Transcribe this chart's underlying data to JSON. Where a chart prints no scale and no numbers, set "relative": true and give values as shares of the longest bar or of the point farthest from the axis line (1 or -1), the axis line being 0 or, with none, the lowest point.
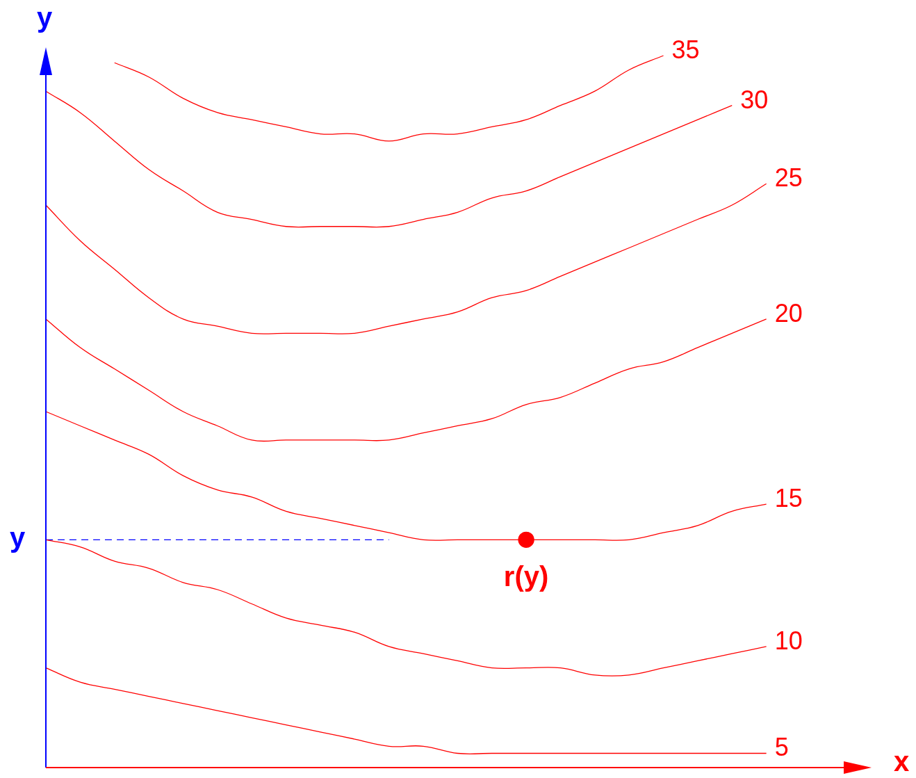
{
  "chart_data": {
    "type": "line",
    "relative": true,
    "xlabel": "x",
    "ylabel": "y",
    "legend": false,
    "marker": "none",
    "tick_labels": false,
    "categories": [
      null,
      null,
      null,
      null,
      null,
      null,
      null,
      null,
      null,
      null,
      null,
      null,
      null,
      null,
      null,
      null,
      null,
      null,
      null,
      null,
      null,
      null,
      null
    ],
    "series": [
      {
        "name": "35",
        "color": "#ff0000",
        "values": [
          null,
          null,
          0.99,
          0.97,
          0.94,
          0.92,
          0.91,
          0.9,
          0.89,
          0.89,
          0.88,
          0.89,
          0.89,
          0.9,
          0.91,
          0.93,
          0.95,
          0.98,
          1,
          null,
          null,
          null,
          null
        ]
      },
      {
        "name": "30",
        "color": "#ff0000",
        "values": [
          0.95,
          0.92,
          0.88,
          0.84,
          0.81,
          0.78,
          0.77,
          0.76,
          0.76,
          0.76,
          0.76,
          0.77,
          0.78,
          0.8,
          0.81,
          0.83,
          0.85,
          0.87,
          0.89,
          0.91,
          0.93,
          null,
          null
        ]
      },
      {
        "name": "25",
        "color": "#ff0000",
        "values": [
          0.79,
          0.74,
          0.7,
          0.66,
          0.63,
          0.62,
          0.61,
          0.61,
          0.61,
          0.61,
          0.62,
          0.63,
          0.64,
          0.66,
          0.67,
          0.69,
          0.71,
          0.73,
          0.75,
          0.77,
          0.79,
          0.82,
          null
        ]
      },
      {
        "name": "20",
        "color": "#ff0000",
        "values": [
          0.63,
          0.59,
          0.56,
          0.53,
          0.5,
          0.48,
          0.46,
          0.46,
          0.46,
          0.46,
          0.46,
          0.47,
          0.48,
          0.49,
          0.51,
          0.52,
          0.54,
          0.56,
          0.57,
          0.59,
          0.61,
          0.63,
          null
        ]
      },
      {
        "name": "15",
        "color": "#ff0000",
        "values": [
          0.5,
          0.48,
          0.46,
          0.44,
          0.41,
          0.39,
          0.38,
          0.36,
          0.35,
          0.34,
          0.33,
          0.32,
          0.32,
          0.32,
          0.32,
          0.32,
          0.32,
          0.32,
          0.33,
          0.34,
          0.36,
          0.37,
          null
        ]
      },
      {
        "name": "10",
        "color": "#ff0000",
        "values": [
          0.32,
          0.31,
          0.29,
          0.28,
          0.26,
          0.25,
          0.23,
          0.21,
          0.2,
          0.19,
          0.17,
          0.16,
          0.15,
          0.14,
          0.14,
          0.14,
          0.13,
          0.13,
          0.14,
          0.15,
          0.16,
          0.17,
          null
        ]
      },
      {
        "name": "5",
        "color": "#ff0000",
        "values": [
          0.14,
          0.12,
          0.11,
          0.1,
          0.09,
          0.08,
          0.07,
          0.06,
          0.05,
          0.04,
          0.03,
          0.03,
          0.02,
          0.02,
          0.02,
          0.02,
          0.02,
          0.02,
          0.02,
          0.02,
          0.02,
          0.02,
          null
        ]
      },
      {
        "color": "#0000ff",
        "line_style": "dashed",
        "values": [
          0.32,
          0.32,
          0.32,
          0.32,
          0.32,
          0.32,
          0.32,
          0.32,
          0.32,
          0.32,
          0.32,
          null,
          null,
          null,
          null,
          null,
          null,
          null,
          null,
          null,
          null,
          null,
          null
        ]
      },
      {
        "color": "#ff0000",
        "marker": "circle",
        "values": [
          null,
          null,
          null,
          null,
          null,
          null,
          null,
          null,
          null,
          null,
          null,
          null,
          null,
          null,
          0.32,
          null,
          null,
          null,
          null,
          null,
          null,
          null,
          null
        ]
      }
    ],
    "annotations": [
      "y",
      "r(y)"
    ]
  }
}
